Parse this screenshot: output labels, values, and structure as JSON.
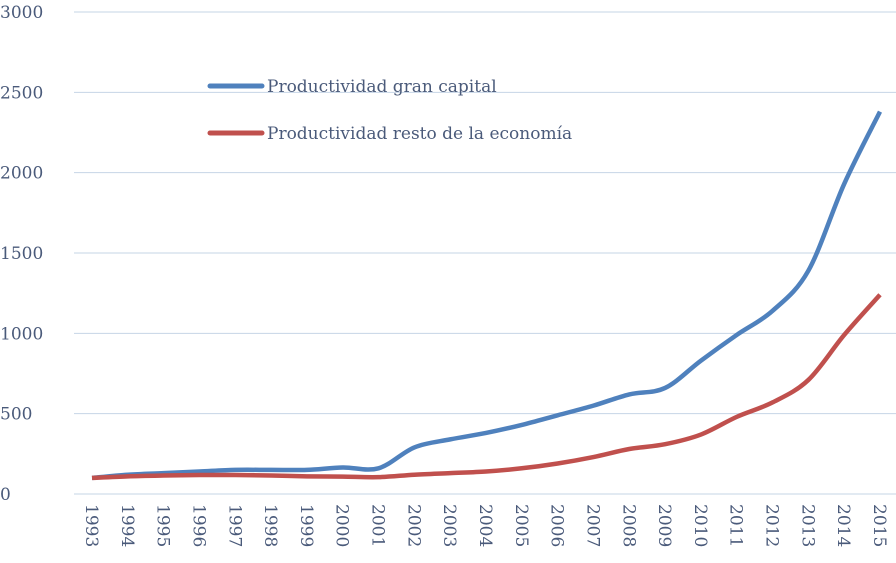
{
  "chart_data": {
    "type": "line",
    "categories": [
      "1993",
      "1994",
      "1995",
      "1996",
      "1997",
      "1998",
      "1999",
      "2000",
      "2001",
      "2002",
      "2003",
      "2004",
      "2005",
      "2006",
      "2007",
      "2008",
      "2009",
      "2010",
      "2011",
      "2012",
      "2013",
      "2014",
      "2015"
    ],
    "series": [
      {
        "name": "Productividad gran capital",
        "color": "#4f81bd",
        "values": [
          100,
          120,
          130,
          140,
          150,
          150,
          150,
          165,
          160,
          290,
          340,
          380,
          430,
          490,
          550,
          620,
          660,
          830,
          990,
          1140,
          1390,
          1930,
          2380
        ]
      },
      {
        "name": "Productividad resto de la economía",
        "color": "#c0504d",
        "values": [
          100,
          110,
          115,
          118,
          118,
          115,
          110,
          108,
          105,
          120,
          130,
          140,
          160,
          190,
          230,
          280,
          310,
          370,
          480,
          570,
          710,
          990,
          1240
        ]
      }
    ],
    "ylim": [
      0,
      3000
    ],
    "yticks": [
      0,
      500,
      1000,
      1500,
      2000,
      2500,
      3000
    ],
    "grid": true,
    "legend": "top-left"
  }
}
